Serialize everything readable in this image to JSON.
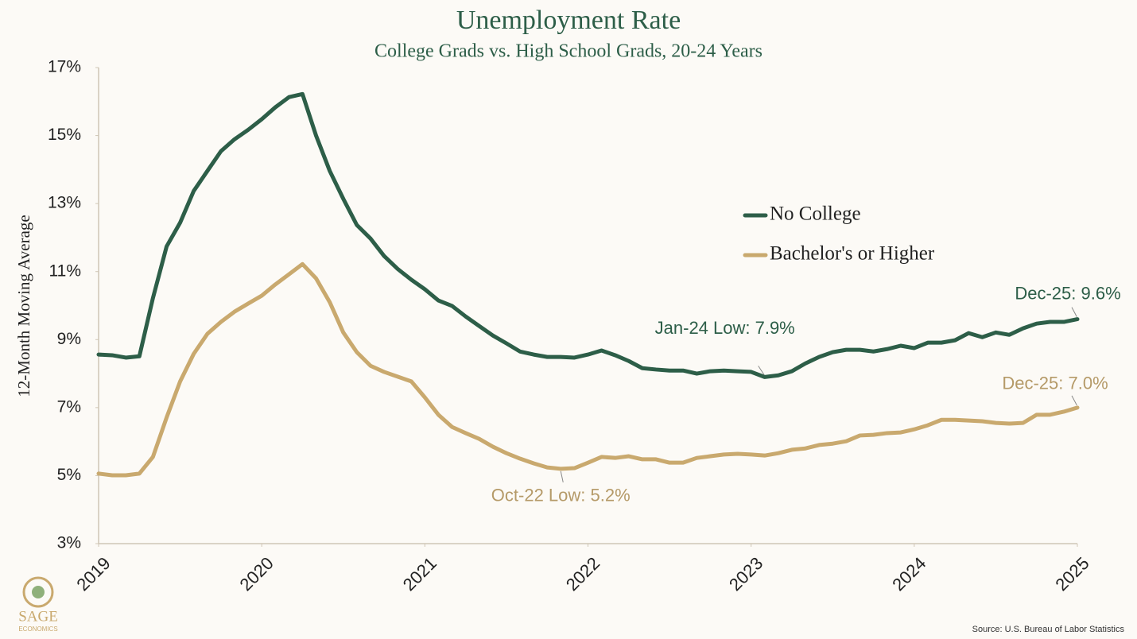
{
  "chart_data": {
    "type": "line",
    "title": "Unemployment Rate",
    "subtitle": "College Grads vs. High School Grads, 20-24 Years",
    "y_label": "12-Month Moving Average",
    "source": "Source: U.S. Bureau of Labor Statistics",
    "logo": {
      "name": "SAGE",
      "tagline": "ECONOMICS"
    },
    "x": [
      2019,
      2019.083,
      2019.167,
      2019.25,
      2019.333,
      2019.417,
      2019.5,
      2019.583,
      2019.667,
      2019.75,
      2019.833,
      2019.917,
      2020,
      2020.083,
      2020.167,
      2020.25,
      2020.333,
      2020.417,
      2020.5,
      2020.583,
      2020.667,
      2020.75,
      2020.833,
      2020.917,
      2021,
      2021.083,
      2021.167,
      2021.25,
      2021.333,
      2021.417,
      2021.5,
      2021.583,
      2021.667,
      2021.75,
      2021.833,
      2021.917,
      2022,
      2022.083,
      2022.167,
      2022.25,
      2022.333,
      2022.417,
      2022.5,
      2022.583,
      2022.667,
      2022.75,
      2022.833,
      2022.917,
      2023,
      2023.083,
      2023.167,
      2023.25,
      2023.333,
      2023.417,
      2023.5,
      2023.583,
      2023.667,
      2023.75,
      2023.833,
      2023.917,
      2024,
      2024.083,
      2024.167,
      2024.25,
      2024.333,
      2024.417,
      2024.5,
      2024.583,
      2024.667,
      2024.75,
      2024.833,
      2024.917,
      2025
    ],
    "series": [
      {
        "name": "No College",
        "color": "#2d5e48",
        "values": [
          8.56,
          8.54,
          8.47,
          8.51,
          10.22,
          11.74,
          12.44,
          13.37,
          13.96,
          14.54,
          14.89,
          15.17,
          15.48,
          15.83,
          16.13,
          16.22,
          15.0,
          13.96,
          13.14,
          12.37,
          11.97,
          11.46,
          11.08,
          10.76,
          10.48,
          10.15,
          9.99,
          9.68,
          9.4,
          9.12,
          8.89,
          8.65,
          8.56,
          8.49,
          8.49,
          8.47,
          8.56,
          8.68,
          8.54,
          8.37,
          8.16,
          8.12,
          8.09,
          8.09,
          8.0,
          8.07,
          8.09,
          8.07,
          8.05,
          7.9,
          7.95,
          8.07,
          8.3,
          8.49,
          8.63,
          8.7,
          8.7,
          8.65,
          8.72,
          8.82,
          8.75,
          8.91,
          8.91,
          8.98,
          9.19,
          9.07,
          9.21,
          9.14,
          9.33,
          9.47,
          9.52,
          9.52,
          9.6
        ]
      },
      {
        "name": "Bachelor's or Higher",
        "color": "#c9a96e",
        "values": [
          5.06,
          5.01,
          5.01,
          5.06,
          5.55,
          6.71,
          7.77,
          8.58,
          9.17,
          9.52,
          9.82,
          10.06,
          10.29,
          10.62,
          10.92,
          11.22,
          10.8,
          10.1,
          9.21,
          8.63,
          8.23,
          8.05,
          7.91,
          7.77,
          7.3,
          6.79,
          6.43,
          6.25,
          6.08,
          5.85,
          5.66,
          5.5,
          5.36,
          5.24,
          5.2,
          5.22,
          5.38,
          5.55,
          5.52,
          5.57,
          5.48,
          5.48,
          5.38,
          5.38,
          5.52,
          5.57,
          5.62,
          5.64,
          5.62,
          5.59,
          5.66,
          5.76,
          5.8,
          5.9,
          5.94,
          6.01,
          6.18,
          6.2,
          6.25,
          6.27,
          6.36,
          6.48,
          6.64,
          6.64,
          6.62,
          6.6,
          6.55,
          6.53,
          6.55,
          6.79,
          6.79,
          6.88,
          7.0
        ]
      }
    ],
    "annotations": [
      {
        "text": "Jan-24 Low: 7.9%",
        "x": 2023.083,
        "y": 7.9,
        "color": "#2d5e48"
      },
      {
        "text": "Oct-22 Low: 5.2%",
        "x": 2021.833,
        "y": 5.2,
        "color": "#b59a68"
      },
      {
        "text": "Dec-25: 9.6%",
        "x": 2025,
        "y": 9.6,
        "color": "#2d5e48"
      },
      {
        "text": "Dec-25: 7.0%",
        "x": 2025,
        "y": 7.0,
        "color": "#b59a68"
      }
    ],
    "xlim": [
      2019,
      2025
    ],
    "xticks": [
      2019,
      2020,
      2021,
      2022,
      2023,
      2024,
      2025
    ],
    "ylim": [
      3,
      17
    ],
    "yticks": [
      {
        "value": 3,
        "label": "3%"
      },
      {
        "value": 5,
        "label": "5%"
      },
      {
        "value": 7,
        "label": "7%"
      },
      {
        "value": 9,
        "label": "9%"
      },
      {
        "value": 11,
        "label": "11%"
      },
      {
        "value": 13,
        "label": "13%"
      },
      {
        "value": 15,
        "label": "15%"
      },
      {
        "value": 17,
        "label": "17%"
      }
    ],
    "grid": false
  }
}
